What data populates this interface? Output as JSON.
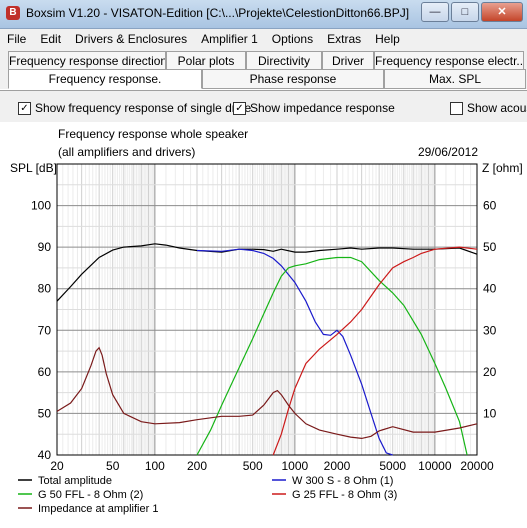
{
  "window": {
    "title": "Boxsim V1.20 - VISATON-Edition [C:\\...\\Projekte\\CelestionDitton66.BPJ]",
    "icon": "B"
  },
  "menu": [
    "File",
    "Edit",
    "Drivers & Enclosures",
    "Amplifier 1",
    "Options",
    "Extras",
    "Help"
  ],
  "tabs_row1": [
    "Frequency response directions",
    "Polar plots",
    "Directivity",
    "Driver",
    "Frequency response electr.."
  ],
  "tabs_row2": [
    "Frequency response.",
    "Phase response",
    "Max. SPL"
  ],
  "options": {
    "single_drive": {
      "label": "Show frequency response of single drive",
      "checked": true
    },
    "impedance": {
      "label": "Show impedance response",
      "checked": true
    },
    "acoustic": {
      "label": "Show acous",
      "checked": false
    }
  },
  "chart_data": {
    "type": "line",
    "title": "Frequency response whole speaker",
    "subtitle": "(all amplifiers and drivers)",
    "date": "29/06/2012",
    "ylabel": "SPL [dB]",
    "y2label": "Z [ohm]",
    "xscale": "log",
    "xlim": [
      20,
      20000
    ],
    "ylim": [
      40,
      110
    ],
    "y2lim": [
      0,
      70
    ],
    "xticks": [
      "20",
      "50",
      "100",
      "200",
      "500",
      "1000",
      "2000",
      "5000",
      "10000",
      "20000"
    ],
    "yticks": [
      "40",
      "50",
      "60",
      "70",
      "80",
      "90",
      "100"
    ],
    "y2ticks": [
      "10",
      "20",
      "30",
      "40",
      "50",
      "60"
    ],
    "grid": true,
    "series": [
      {
        "name": "Total amplitude",
        "color": "#000000",
        "axis": "left",
        "x": [
          20,
          25,
          30,
          40,
          50,
          60,
          80,
          100,
          120,
          150,
          200,
          300,
          400,
          500,
          600,
          700,
          800,
          1000,
          1200,
          1500,
          2000,
          2500,
          3000,
          4000,
          5000,
          7000,
          10000,
          15000,
          20000
        ],
        "y": [
          77,
          80.5,
          83.5,
          87.5,
          89.3,
          90,
          90.3,
          90.8,
          90.5,
          89.8,
          89.2,
          88.8,
          89.5,
          89.5,
          89.4,
          89,
          89.5,
          88.8,
          88.8,
          89.2,
          89.5,
          89.8,
          89.5,
          89.8,
          89.8,
          89.5,
          89.5,
          89.8,
          88.3
        ]
      },
      {
        "name": "W 300 S - 8 Ohm (1)",
        "color": "#1a1acc",
        "axis": "left",
        "x": [
          200,
          300,
          400,
          500,
          600,
          700,
          800,
          1000,
          1200,
          1400,
          1600,
          1800,
          2000,
          2200,
          2500,
          3000,
          3500,
          4000,
          4500,
          5000
        ],
        "y": [
          89.2,
          89,
          89.5,
          89.2,
          88.5,
          87.3,
          85.5,
          81.5,
          77,
          72,
          69,
          68.8,
          70,
          68.5,
          64,
          57,
          50,
          44,
          40.5,
          40
        ]
      },
      {
        "name": "G 50 FFL - 8 Ohm (2)",
        "color": "#16b416",
        "axis": "left",
        "x": [
          200,
          250,
          300,
          400,
          500,
          600,
          700,
          800,
          900,
          1000,
          1200,
          1500,
          2000,
          2500,
          3000,
          4000,
          5000,
          6000,
          8000,
          10000,
          12000,
          15000,
          17000
        ],
        "y": [
          40,
          46,
          52,
          61,
          68,
          74,
          79,
          83,
          85,
          85.5,
          86,
          87,
          87.5,
          87.5,
          86.5,
          82,
          79,
          76,
          69,
          62,
          56,
          48,
          40
        ]
      },
      {
        "name": "G 25 FFL - 8 Ohm (3)",
        "color": "#cc1a1a",
        "axis": "left",
        "x": [
          700,
          800,
          900,
          1000,
          1200,
          1500,
          2000,
          2500,
          3000,
          4000,
          5000,
          6000,
          7000,
          8000,
          10000,
          15000,
          20000
        ],
        "y": [
          40,
          45,
          51,
          56,
          62,
          65.5,
          69,
          72,
          75,
          81,
          85,
          86.5,
          87.5,
          88.5,
          89.5,
          90,
          89.5
        ]
      },
      {
        "name": "Impedance at amplifier 1",
        "color": "#7a1a1a",
        "axis": "right",
        "x": [
          20,
          25,
          30,
          35,
          38,
          40,
          42,
          45,
          50,
          60,
          80,
          100,
          150,
          200,
          300,
          400,
          500,
          600,
          700,
          750,
          800,
          900,
          1000,
          1200,
          1500,
          2000,
          2500,
          3000,
          3500,
          4000,
          5000,
          7000,
          10000,
          15000,
          20000
        ],
        "y": [
          10.5,
          12.5,
          16,
          21.5,
          25,
          25.8,
          24,
          19.5,
          14.5,
          10,
          8,
          7.5,
          7.8,
          8.5,
          9.3,
          9.3,
          9.6,
          12,
          15,
          15.5,
          14.5,
          12,
          10,
          7.5,
          6,
          5,
          4.3,
          4,
          4.5,
          5.8,
          6.8,
          5.5,
          5.5,
          6.5,
          7.5
        ]
      }
    ]
  }
}
